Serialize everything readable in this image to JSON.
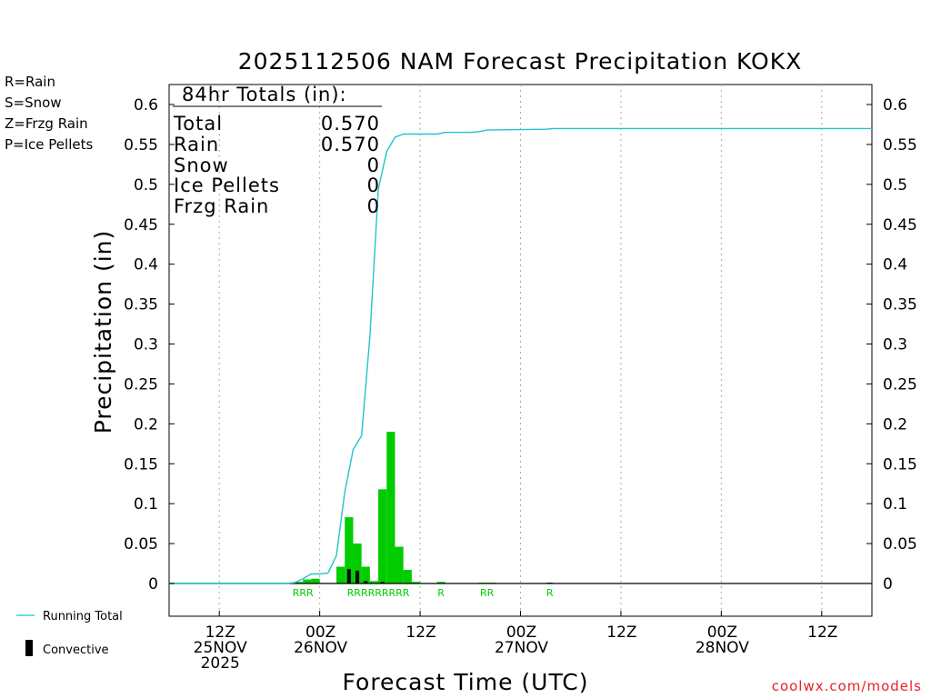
{
  "title": "2025112506 NAM Forecast Precipitation KOKX",
  "credit": "coolwx.com/models",
  "type_legend": [
    {
      "text": "R=Rain",
      "color": "#33cc33"
    },
    {
      "text": "S=Snow",
      "color": "#3355ee"
    },
    {
      "text": "Z=Frzg Rain",
      "color": "#ee8833"
    },
    {
      "text": "P=Ice Pellets",
      "color": "#ee2299"
    }
  ],
  "series_legend": {
    "running_total": "Running Total",
    "convective": "Convective"
  },
  "totals_box": {
    "header": "84hr Totals (in):",
    "rows": [
      {
        "label": "Total",
        "value": "0.570"
      },
      {
        "label": "Rain",
        "value": "0.570"
      },
      {
        "label": "Snow",
        "value": "0"
      },
      {
        "label": "Ice Pellets",
        "value": "0"
      },
      {
        "label": "Frzg Rain",
        "value": "0"
      }
    ]
  },
  "colors": {
    "running_total": "#22c4cc",
    "rain_bar": "#00cc00",
    "convective": "#000000",
    "grid": "#aaaaaa"
  },
  "chart_data": {
    "type": "bar",
    "ylabel": "Precipitation (in)",
    "xlabel": "Forecast Time (UTC)",
    "ylim": [
      -0.04,
      0.63
    ],
    "xlim_hours": [
      0,
      84
    ],
    "y_ticks": [
      "0",
      "0.05",
      "0.1",
      "0.15",
      "0.2",
      "0.25",
      "0.3",
      "0.35",
      "0.4",
      "0.45",
      "0.5",
      "0.55",
      "0.6"
    ],
    "x_ticks": [
      {
        "hour": 6,
        "lines": [
          "12Z",
          "25NOV",
          "2025"
        ]
      },
      {
        "hour": 18,
        "lines": [
          "00Z",
          "26NOV"
        ]
      },
      {
        "hour": 30,
        "lines": [
          "12Z"
        ]
      },
      {
        "hour": 42,
        "lines": [
          "00Z",
          "27NOV"
        ]
      },
      {
        "hour": 54,
        "lines": [
          "12Z"
        ]
      },
      {
        "hour": 66,
        "lines": [
          "00Z",
          "28NOV"
        ]
      },
      {
        "hour": 78,
        "lines": [
          "12Z"
        ]
      }
    ],
    "grid": true,
    "hourly_precip": [
      {
        "hour": 15.5,
        "rain": 0.002
      },
      {
        "hour": 16.5,
        "rain": 0.005
      },
      {
        "hour": 17.5,
        "rain": 0.006
      },
      {
        "hour": 20.5,
        "rain": 0.021,
        "convective": 0.0
      },
      {
        "hour": 21.5,
        "rain": 0.083,
        "convective": 0.018
      },
      {
        "hour": 22.5,
        "rain": 0.05,
        "convective": 0.016
      },
      {
        "hour": 23.5,
        "rain": 0.021,
        "convective": 0.003
      },
      {
        "hour": 24.5,
        "rain": 0.003
      },
      {
        "hour": 25.5,
        "rain": 0.118,
        "convective": 0.002
      },
      {
        "hour": 26.5,
        "rain": 0.19
      },
      {
        "hour": 27.5,
        "rain": 0.046
      },
      {
        "hour": 28.5,
        "rain": 0.017
      },
      {
        "hour": 29.5,
        "rain": 0.002
      },
      {
        "hour": 32.5,
        "rain": 0.002
      },
      {
        "hour": 37.5,
        "rain": 0.001
      },
      {
        "hour": 38.5,
        "rain": 0.001
      },
      {
        "hour": 45.5,
        "rain": 0.001,
        "convective": 0.001
      }
    ],
    "precip_type_labels": [
      {
        "hour": 16.0,
        "text": "RRR"
      },
      {
        "hour": 25.0,
        "text": "RRRRRRRRR"
      },
      {
        "hour": 32.5,
        "text": "R"
      },
      {
        "hour": 38.0,
        "text": "RR"
      },
      {
        "hour": 45.5,
        "text": "R"
      }
    ],
    "running_total": [
      [
        0,
        0
      ],
      [
        14,
        0
      ],
      [
        15,
        0.001
      ],
      [
        16,
        0.006
      ],
      [
        17,
        0.012
      ],
      [
        18,
        0.012
      ],
      [
        19,
        0.013
      ],
      [
        20,
        0.035
      ],
      [
        21,
        0.115
      ],
      [
        22,
        0.168
      ],
      [
        23,
        0.185
      ],
      [
        24,
        0.31
      ],
      [
        25,
        0.494
      ],
      [
        26,
        0.541
      ],
      [
        27,
        0.559
      ],
      [
        28,
        0.563
      ],
      [
        29,
        0.563
      ],
      [
        32,
        0.563
      ],
      [
        33,
        0.565
      ],
      [
        36,
        0.565
      ],
      [
        37,
        0.566
      ],
      [
        38,
        0.568
      ],
      [
        45,
        0.569
      ],
      [
        46,
        0.57
      ],
      [
        84,
        0.57
      ]
    ]
  }
}
